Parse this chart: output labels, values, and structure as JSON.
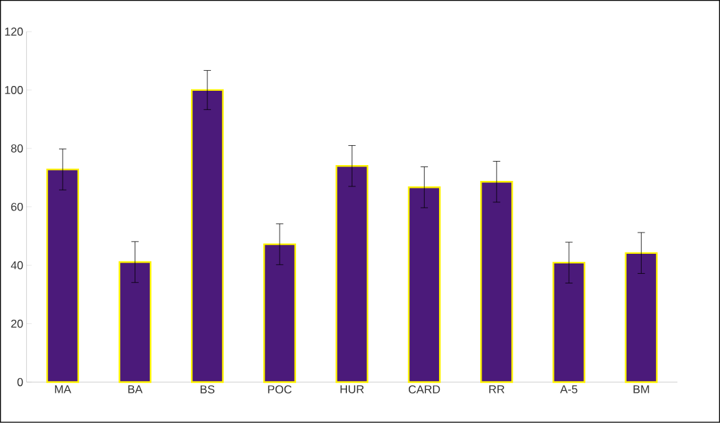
{
  "chart_data": {
    "type": "bar",
    "categories": [
      "MA",
      "BA",
      "BS",
      "POC",
      "HUR",
      "CARD",
      "RR",
      "A-5",
      "BM"
    ],
    "values": [
      72.8,
      41.1,
      100,
      47.2,
      74,
      66.7,
      68.6,
      40.9,
      44.2
    ],
    "errors": [
      7,
      7,
      6.7,
      7,
      7,
      7,
      7,
      7,
      7
    ],
    "color": "#4b1a7a",
    "ylim": [
      0,
      120
    ],
    "yticks": [
      0,
      20,
      40,
      60,
      80,
      100,
      120
    ],
    "grid": false
  }
}
